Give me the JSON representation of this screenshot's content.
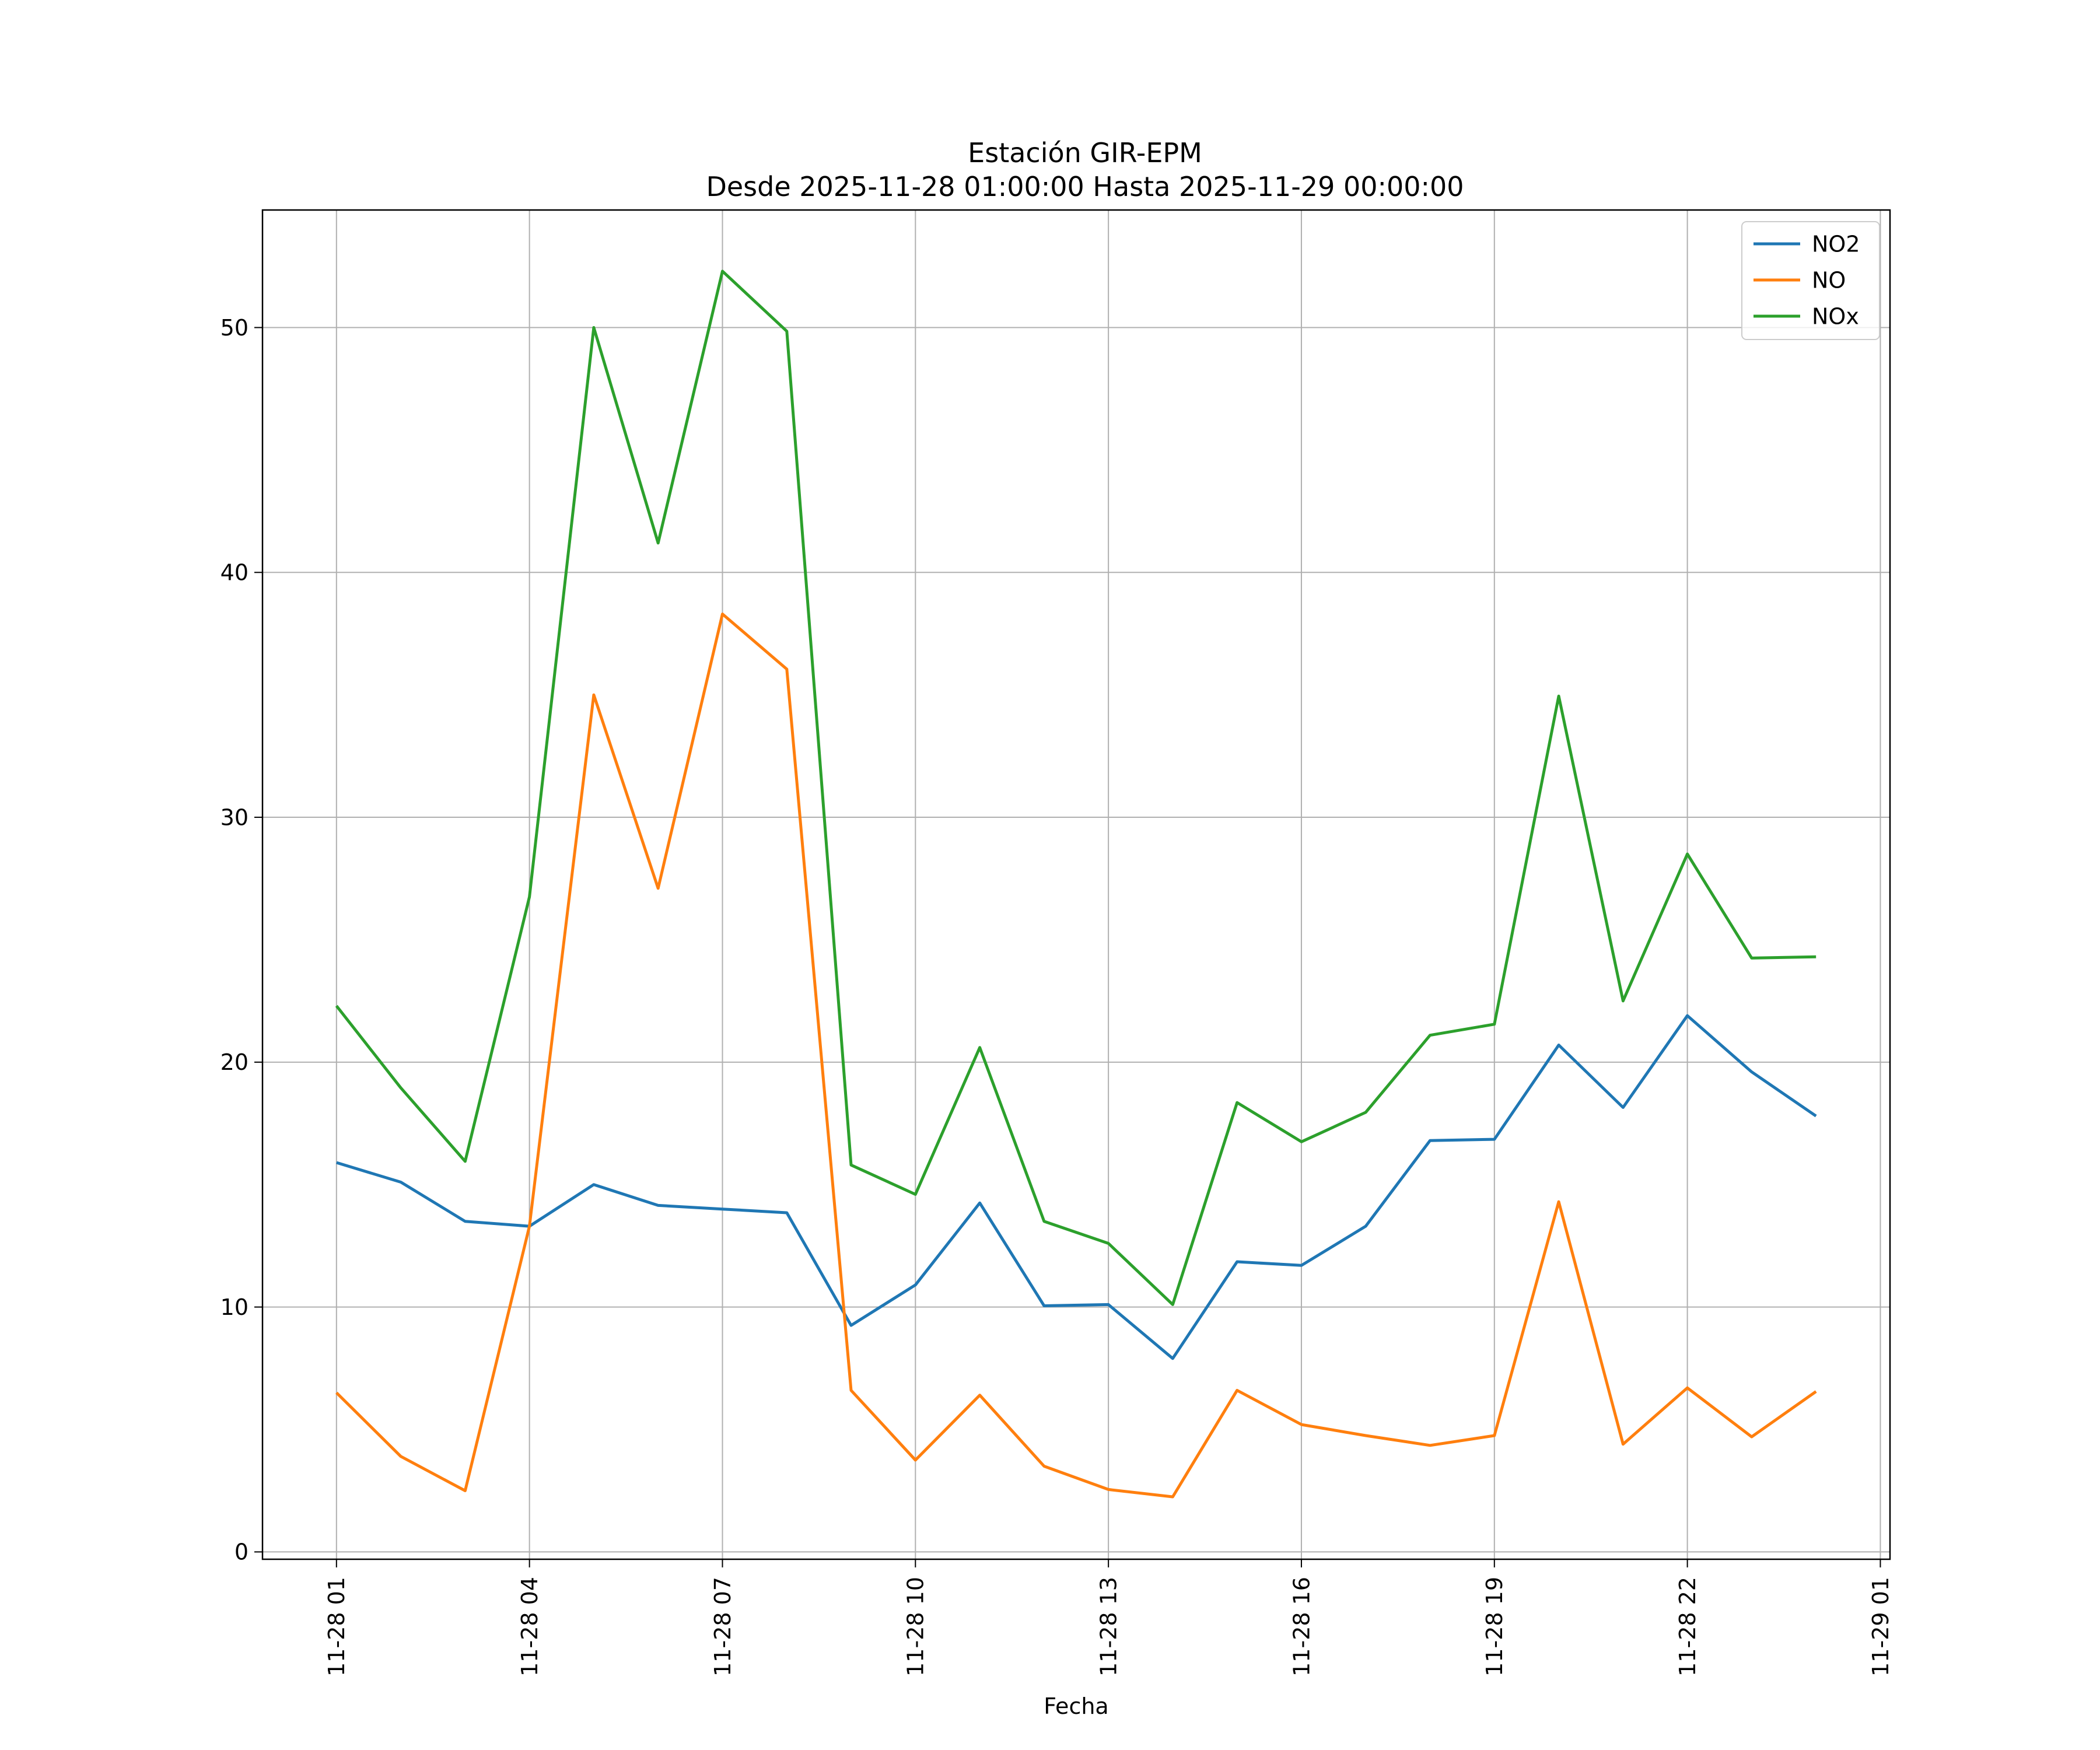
{
  "chart_data": {
    "type": "line",
    "title": "Estación GIR-EPM",
    "subtitle": "Desde 2025-11-28 01:00:00 Hasta 2025-11-29 00:00:00",
    "xlabel": "Fecha",
    "ylabel": "",
    "x": [
      "2025-11-28 01:00",
      "2025-11-28 02:00",
      "2025-11-28 03:00",
      "2025-11-28 04:00",
      "2025-11-28 05:00",
      "2025-11-28 06:00",
      "2025-11-28 07:00",
      "2025-11-28 08:00",
      "2025-11-28 09:00",
      "2025-11-28 10:00",
      "2025-11-28 11:00",
      "2025-11-28 12:00",
      "2025-11-28 13:00",
      "2025-11-28 14:00",
      "2025-11-28 15:00",
      "2025-11-28 16:00",
      "2025-11-28 17:00",
      "2025-11-28 18:00",
      "2025-11-28 19:00",
      "2025-11-28 20:00",
      "2025-11-28 21:00",
      "2025-11-28 22:00",
      "2025-11-28 23:00",
      "2025-11-29 00:00"
    ],
    "x_ticks": [
      "11-28 01",
      "11-28 04",
      "11-28 07",
      "11-28 10",
      "11-28 13",
      "11-28 16",
      "11-28 19",
      "11-28 22",
      "11-29 01"
    ],
    "x_tick_dates": [
      "2025-11-28 01:00",
      "2025-11-28 04:00",
      "2025-11-28 07:00",
      "2025-11-28 10:00",
      "2025-11-28 13:00",
      "2025-11-28 16:00",
      "2025-11-28 19:00",
      "2025-11-28 22:00",
      "2025-11-29 01:00"
    ],
    "xlim": [
      "2025-11-27 23:51",
      "2025-11-29 01:09"
    ],
    "y_ticks": [
      0,
      10,
      20,
      30,
      40,
      50
    ],
    "ylim": [
      -0.3,
      54.8
    ],
    "grid": true,
    "legend": "top-right",
    "series": [
      {
        "name": "NO2",
        "color": "#1f77b4",
        "values": [
          15.9,
          15.1,
          13.5,
          13.3,
          15.0,
          14.15,
          14.0,
          13.85,
          9.25,
          10.9,
          14.25,
          10.05,
          10.1,
          7.9,
          11.85,
          11.7,
          13.3,
          16.8,
          16.85,
          20.7,
          18.15,
          21.9,
          19.6,
          17.8
        ]
      },
      {
        "name": "NO",
        "color": "#ff7f0e",
        "values": [
          6.5,
          3.9,
          2.5,
          13.3,
          35.0,
          27.1,
          38.3,
          36.05,
          6.6,
          3.75,
          6.4,
          3.5,
          2.55,
          2.25,
          6.6,
          5.2,
          4.75,
          4.35,
          4.75,
          14.3,
          4.4,
          6.7,
          4.7,
          6.55
        ]
      },
      {
        "name": "NOx",
        "color": "#2ca02c",
        "values": [
          22.3,
          18.95,
          15.95,
          26.75,
          50.0,
          41.2,
          52.3,
          49.85,
          15.8,
          14.6,
          20.6,
          13.5,
          12.6,
          10.1,
          18.35,
          16.75,
          17.95,
          21.1,
          21.55,
          34.95,
          22.5,
          28.5,
          24.25,
          24.3
        ]
      }
    ]
  }
}
